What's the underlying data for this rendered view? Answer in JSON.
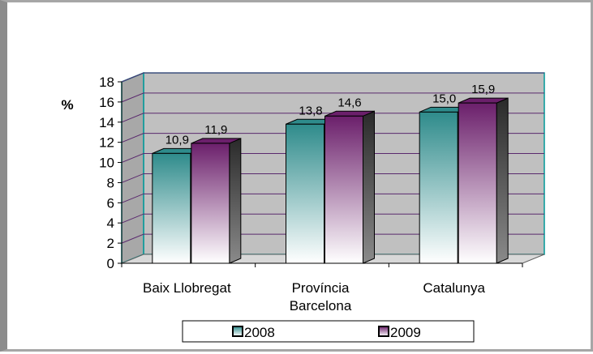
{
  "chart_data": {
    "type": "bar",
    "ylabel": "%",
    "ylim": [
      0,
      18
    ],
    "ytick_step": 2,
    "categories": [
      [
        "Baix Llobregat"
      ],
      [
        "Província",
        "Barcelona"
      ],
      [
        "Catalunya"
      ]
    ],
    "series": [
      {
        "name": "2008",
        "values": [
          10.9,
          13.8,
          15.0
        ],
        "labels": [
          "10,9",
          "13,8",
          "15,0"
        ],
        "color": "#2e8b8b"
      },
      {
        "name": "2009",
        "values": [
          11.9,
          14.6,
          15.9
        ],
        "labels": [
          "11,9",
          "14,6",
          "15,9"
        ],
        "color": "#6b1f6b"
      }
    ],
    "plot_background": "#c0c0c0",
    "plot_border_color": "#009999",
    "gridline_color": "#5a2a6e",
    "grid": true,
    "legend": "bottom"
  }
}
